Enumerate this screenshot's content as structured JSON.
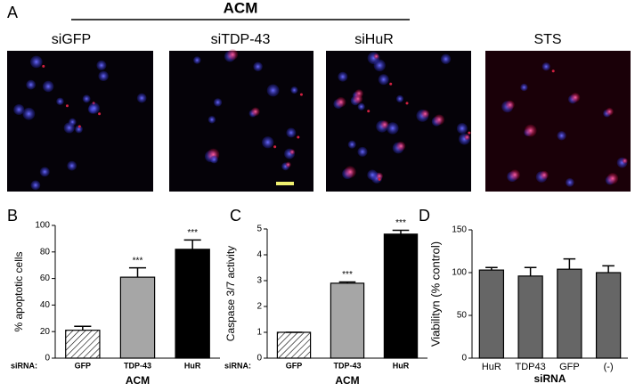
{
  "panel_a": {
    "label": "A",
    "group_label": "ACM",
    "image_labels": [
      "siGFP",
      "siTDP-43",
      "siHuR",
      "STS"
    ]
  },
  "chart_data": [
    {
      "type": "bar",
      "panel_label": "B",
      "ylabel": "% apoptotic cells",
      "x_prefix": "siRNA:",
      "xlabel": "ACM",
      "categories": [
        "GFP",
        "TDP-43",
        "HuR"
      ],
      "values": [
        21,
        61,
        82
      ],
      "errors": [
        3,
        7,
        7
      ],
      "annotations": [
        null,
        "***",
        "***"
      ],
      "colors": [
        "#ffffff",
        "#a6a6a6",
        "#000000"
      ],
      "hatched": [
        true,
        false,
        false
      ],
      "ylim": [
        0,
        100
      ],
      "yticks": [
        0,
        20,
        40,
        60,
        80,
        100
      ]
    },
    {
      "type": "bar",
      "panel_label": "C",
      "ylabel": "Caspase 3/7 activity",
      "x_prefix": "siRNA:",
      "xlabel": "ACM",
      "categories": [
        "GFP",
        "TDP-43",
        "HuR"
      ],
      "values": [
        1,
        2.9,
        4.8
      ],
      "errors": [
        0,
        0.05,
        0.15
      ],
      "annotations": [
        null,
        "***",
        "***"
      ],
      "colors": [
        "#ffffff",
        "#a6a6a6",
        "#000000"
      ],
      "hatched": [
        true,
        false,
        false
      ],
      "ylim": [
        0,
        5
      ],
      "yticks": [
        0,
        1,
        2,
        3,
        4,
        5
      ]
    },
    {
      "type": "bar",
      "panel_label": "D",
      "ylabel": "Viabilityn (% control)",
      "xlabel": "siRNA",
      "categories": [
        "HuR",
        "TDP43",
        "GFP",
        "(-)"
      ],
      "values": [
        103,
        96,
        104,
        100
      ],
      "errors": [
        3,
        10,
        12,
        8
      ],
      "colors": [
        "#666666",
        "#666666",
        "#666666",
        "#666666"
      ],
      "ylim": [
        0,
        150
      ],
      "yticks": [
        0,
        50,
        100,
        150
      ]
    }
  ]
}
